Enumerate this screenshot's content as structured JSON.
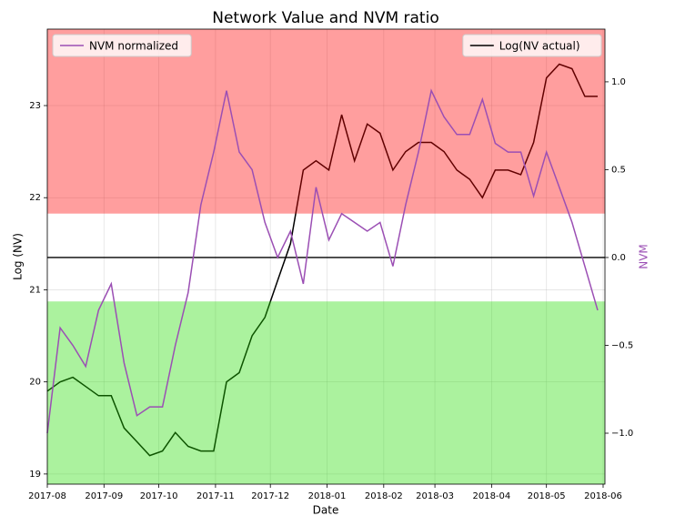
{
  "chart_data": {
    "type": "line",
    "title": "Network Value and NVM ratio",
    "x_label": "Date",
    "y_label": "Log (NV)",
    "y2_label": "NVM",
    "x": [
      "2017-08-01",
      "2017-08-08",
      "2017-08-15",
      "2017-08-22",
      "2017-08-29",
      "2017-09-05",
      "2017-09-12",
      "2017-09-19",
      "2017-09-26",
      "2017-10-03",
      "2017-10-10",
      "2017-10-17",
      "2017-10-24",
      "2017-10-31",
      "2017-11-07",
      "2017-11-14",
      "2017-11-21",
      "2017-11-28",
      "2017-12-05",
      "2017-12-12",
      "2017-12-19",
      "2017-12-26",
      "2018-01-02",
      "2018-01-09",
      "2018-01-16",
      "2018-01-23",
      "2018-01-30",
      "2018-02-06",
      "2018-02-13",
      "2018-02-20",
      "2018-02-27",
      "2018-03-06",
      "2018-03-13",
      "2018-03-20",
      "2018-03-27",
      "2018-04-03",
      "2018-04-10",
      "2018-04-17",
      "2018-04-24",
      "2018-05-01",
      "2018-05-08",
      "2018-05-15",
      "2018-05-22",
      "2018-05-29"
    ],
    "series": [
      {
        "name": "Log(NV actual)",
        "color": "#000000",
        "axis": "y",
        "values": [
          19.9,
          20.0,
          20.05,
          19.95,
          19.85,
          19.85,
          19.5,
          19.35,
          19.2,
          19.25,
          19.45,
          19.3,
          19.25,
          19.25,
          20.0,
          20.1,
          20.5,
          20.7,
          21.1,
          21.5,
          22.3,
          22.4,
          22.3,
          22.9,
          22.4,
          22.8,
          22.7,
          22.3,
          22.5,
          22.6,
          22.6,
          22.5,
          22.3,
          22.2,
          22.0,
          22.3,
          22.3,
          22.25,
          22.6,
          23.3,
          23.45,
          23.4,
          23.1,
          23.1
        ]
      },
      {
        "name": "NVM normalized",
        "color": "#9b4fb4",
        "axis": "y2",
        "values": [
          -1.0,
          -0.4,
          -0.5,
          -0.62,
          -0.3,
          -0.15,
          -0.6,
          -0.9,
          -0.85,
          -0.85,
          -0.5,
          -0.2,
          0.3,
          0.6,
          0.95,
          0.6,
          0.5,
          0.2,
          0.0,
          0.15,
          -0.15,
          0.4,
          0.1,
          0.25,
          0.2,
          0.15,
          0.2,
          -0.05,
          0.3,
          0.6,
          0.95,
          0.8,
          0.7,
          0.7,
          0.9,
          0.65,
          0.6,
          0.6,
          0.35,
          0.6,
          0.4,
          0.2,
          -0.05,
          -0.3
        ]
      }
    ],
    "bands": [
      {
        "range": [
          0.25,
          1.3
        ],
        "color": "#ff0000"
      },
      {
        "range": [
          -1.29,
          -0.25
        ],
        "color": "#22dd00"
      }
    ],
    "y2_line": 0,
    "xlim": [
      "2017-08-01",
      "2018-06-02"
    ],
    "xticks": [
      {
        "value": "2017-08-01",
        "label": "2017-08"
      },
      {
        "value": "2017-09-01",
        "label": "2017-09"
      },
      {
        "value": "2017-10-01",
        "label": "2017-10"
      },
      {
        "value": "2017-11-01",
        "label": "2017-11"
      },
      {
        "value": "2017-12-01",
        "label": "2017-12"
      },
      {
        "value": "2018-01-01",
        "label": "2018-01"
      },
      {
        "value": "2018-02-01",
        "label": "2018-02"
      },
      {
        "value": "2018-03-01",
        "label": "2018-03"
      },
      {
        "value": "2018-04-01",
        "label": "2018-04"
      },
      {
        "value": "2018-05-01",
        "label": "2018-05"
      },
      {
        "value": "2018-06-01",
        "label": "2018-06"
      }
    ],
    "ylim": [
      18.89,
      23.83
    ],
    "yticks": [
      19,
      20,
      21,
      22,
      23
    ],
    "y2lim": [
      -1.29,
      1.3
    ],
    "y2ticks": [
      {
        "value": -1.0,
        "label": "−1.0"
      },
      {
        "value": -0.5,
        "label": "−0.5"
      },
      {
        "value": 0.0,
        "label": "0.0"
      },
      {
        "value": 0.5,
        "label": "0.5"
      },
      {
        "value": 1.0,
        "label": "1.0"
      }
    ],
    "grid": true,
    "legend": {
      "y": "upper right",
      "y2": "upper left"
    }
  }
}
